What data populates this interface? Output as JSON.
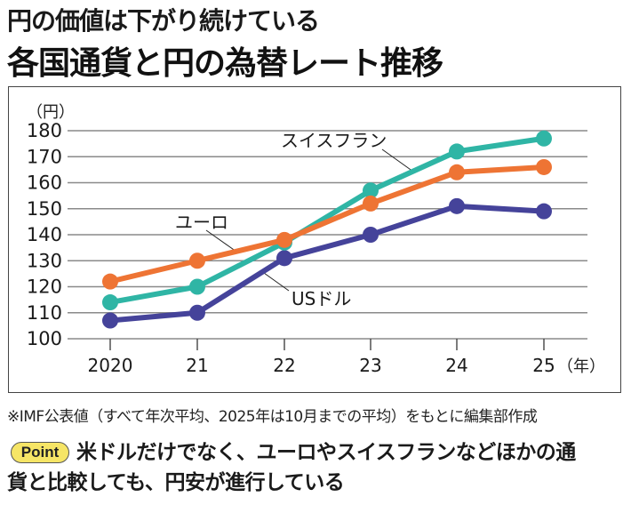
{
  "header": {
    "subtitle": "円の価値は下がり続けている",
    "title": "各国通貨と円の為替レート推移"
  },
  "footnote": "※IMF公表値（すべて年次平均、2025年は10月までの平均）をもとに編集部作成",
  "point": {
    "badge": "Point",
    "line1": "米ドルだけでなく、ユーロやスイスフランなどほかの通",
    "line2": "貨と比較しても、円安が進行している"
  },
  "colors": {
    "usd": "#45439a",
    "eur": "#ee7434",
    "chf": "#2fb5a5",
    "grid": "#8a8a8a"
  },
  "chart_data": {
    "type": "line",
    "title": "各国通貨と円の為替レート推移",
    "xlabel": "（年）",
    "ylabel": "（円）",
    "categories": [
      "2020",
      "21",
      "22",
      "23",
      "24",
      "25"
    ],
    "x_unit_label": "（年）",
    "ylim": [
      100,
      180
    ],
    "yticks": [
      100,
      110,
      120,
      130,
      140,
      150,
      160,
      170,
      180
    ],
    "grid": true,
    "series": [
      {
        "name": "USドル",
        "color": "#45439a",
        "values": [
          107,
          110,
          131,
          140,
          151,
          149
        ]
      },
      {
        "name": "ユーロ",
        "color": "#ee7434",
        "values": [
          122,
          130,
          138,
          152,
          164,
          166
        ]
      },
      {
        "name": "スイスフラン",
        "color": "#2fb5a5",
        "values": [
          114,
          120,
          137,
          157,
          172,
          177
        ]
      }
    ],
    "annotations": [
      {
        "label": "スイスフラン",
        "series": "スイスフラン"
      },
      {
        "label": "ユーロ",
        "series": "ユーロ"
      },
      {
        "label": "USドル",
        "series": "USドル"
      }
    ]
  }
}
